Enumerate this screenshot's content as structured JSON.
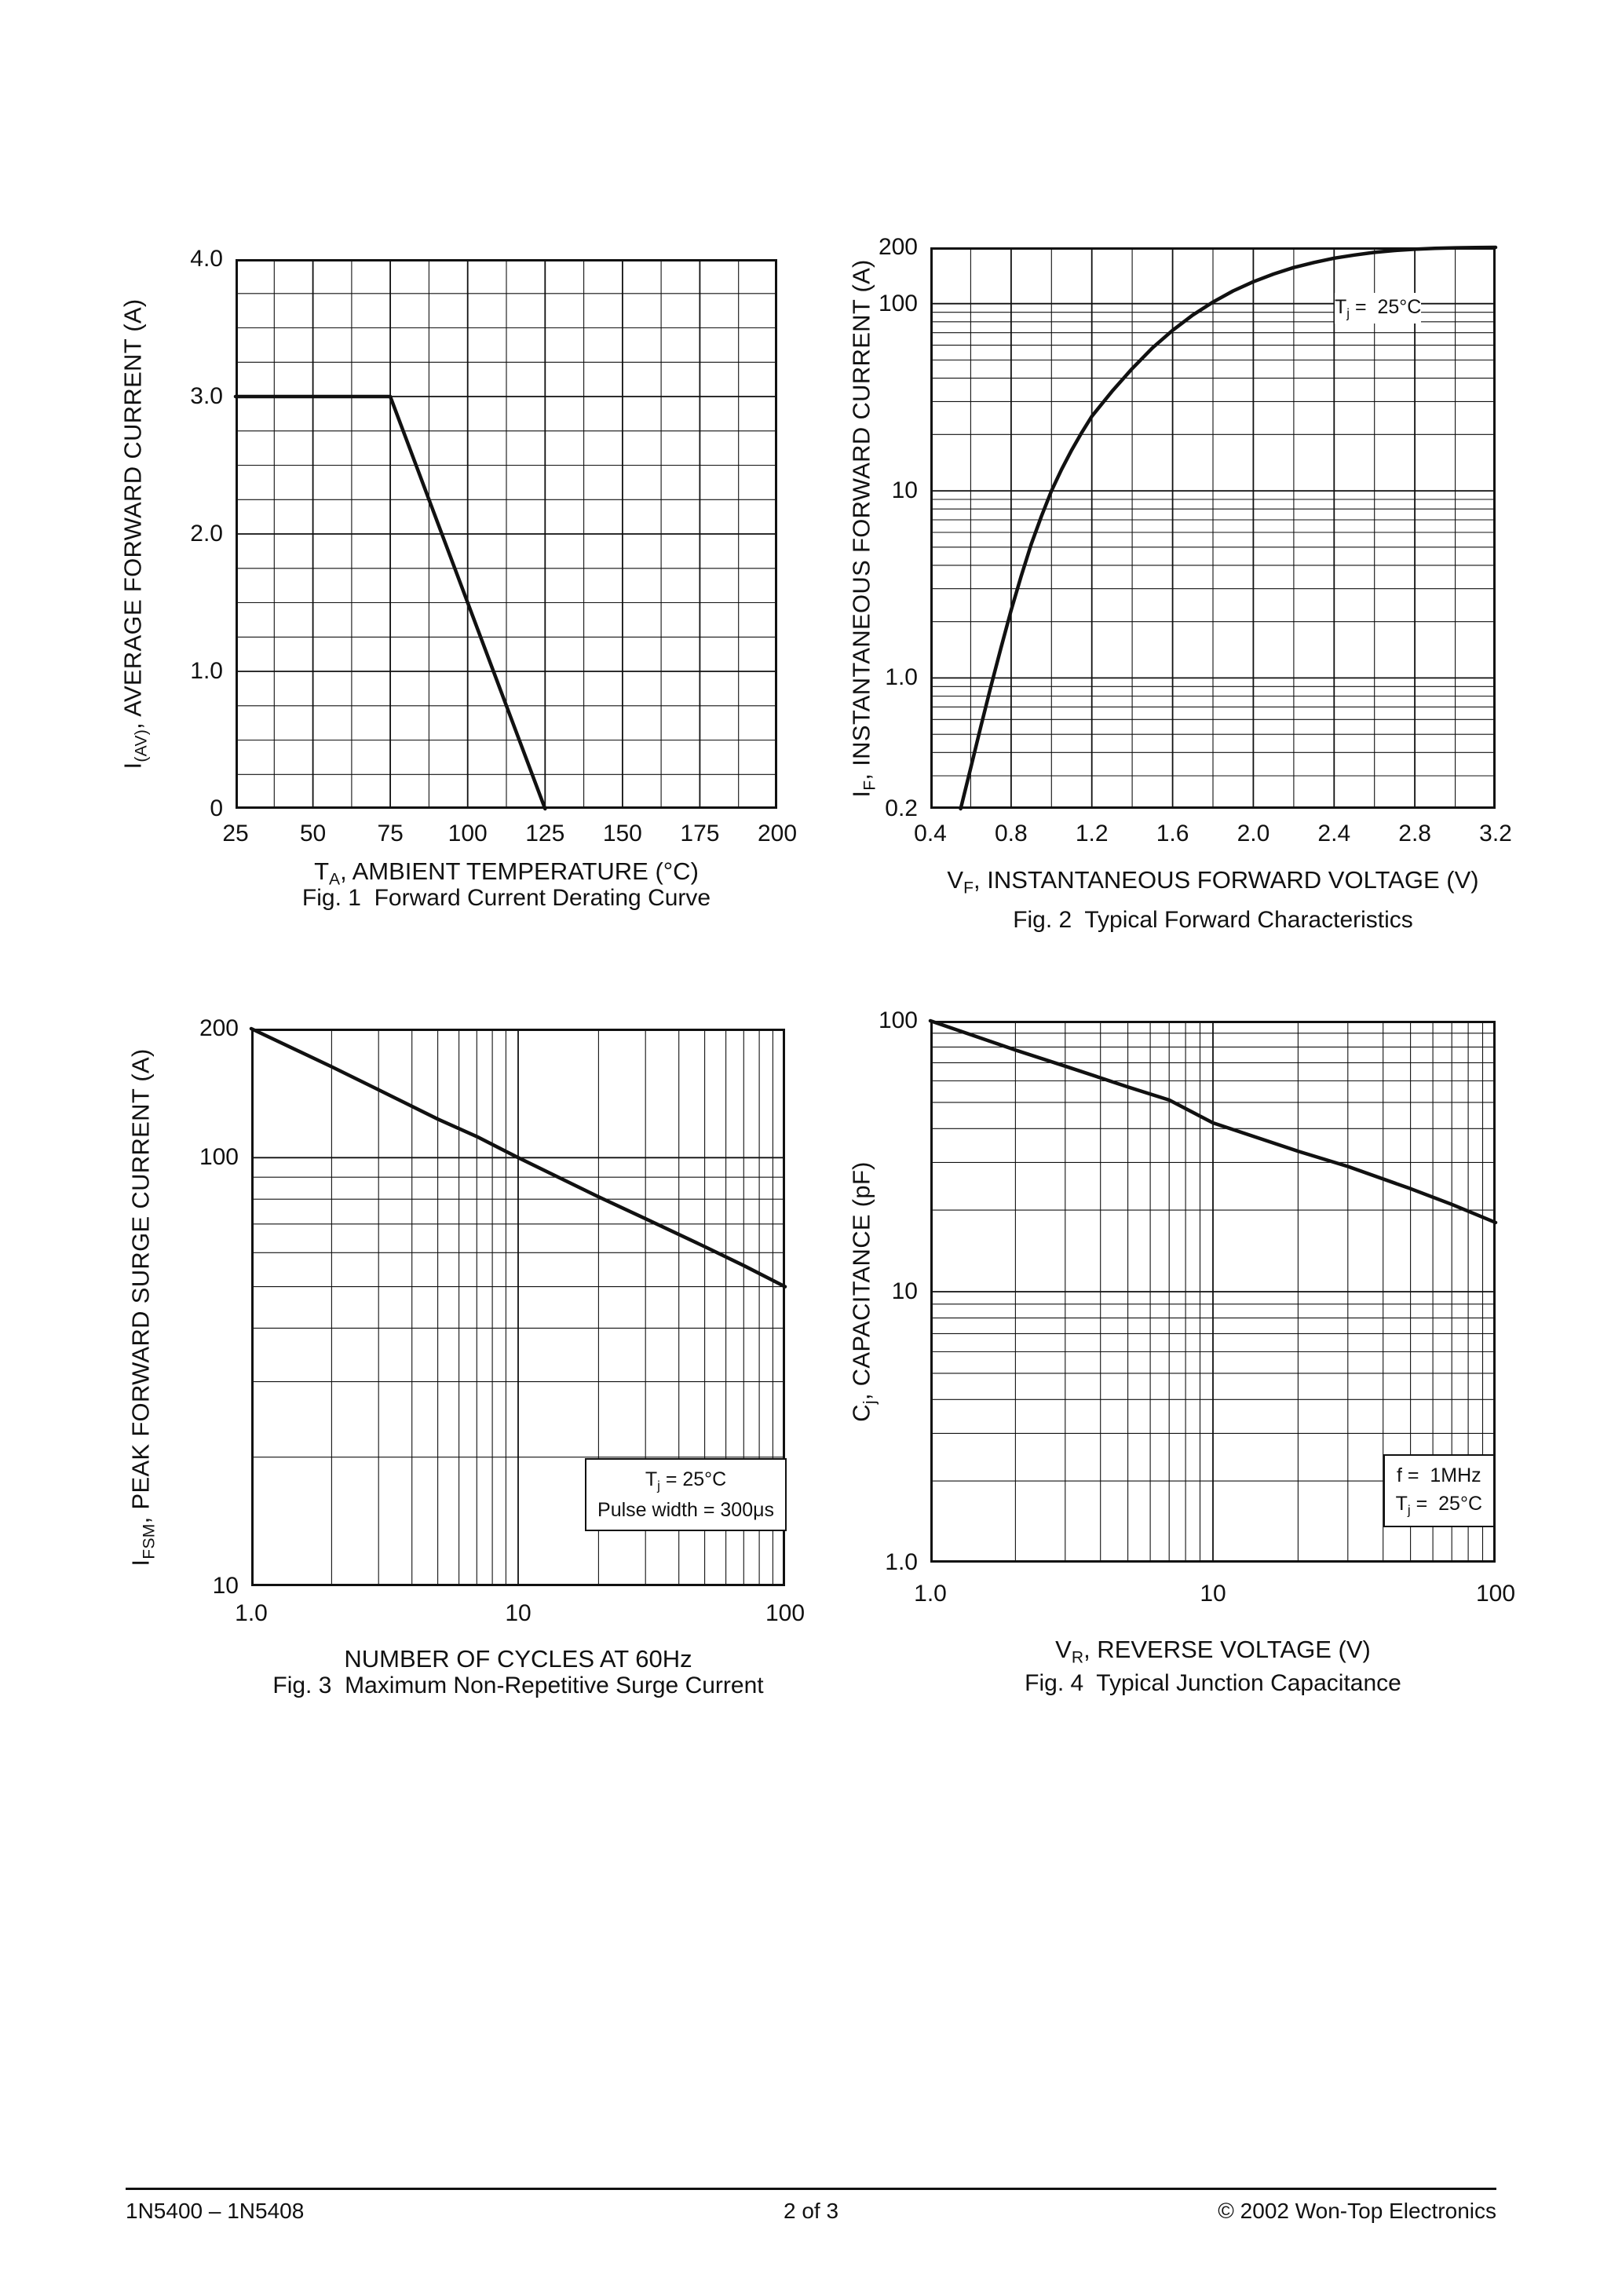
{
  "page": {
    "footer": {
      "left": "1N5400 – 1N5408",
      "center": "2 of 3",
      "right": "© 2002 Won-Top Electronics"
    },
    "ink_color": "#111111"
  },
  "chart_data": [
    {
      "id": "fig1",
      "type": "line",
      "title": "Fig. 1  Forward Current Derating Curve",
      "xlabel": "TA, AMBIENT TEMPERATURE (°C)",
      "ylabel": "I(AV), AVERAGE FORWARD CURRENT (A)",
      "xlabel_segments": [
        [
          "T"
        ],
        [
          "A",
          "sub"
        ],
        [
          ", AMBIENT TEMPERATURE (°C)"
        ]
      ],
      "ylabel_segments": [
        [
          "I"
        ],
        [
          "(AV)",
          "sub"
        ],
        [
          ", AVERAGE FORWARD CURRENT (A)"
        ]
      ],
      "xscale": "linear",
      "yscale": "linear",
      "xlim": [
        25,
        200
      ],
      "ylim": [
        0,
        4.0
      ],
      "grid": {
        "xminor": 12.5,
        "xmajor": 25,
        "yminor": 0.25,
        "ymajor": 1.0
      },
      "xticks": [
        {
          "v": 25,
          "label": "25"
        },
        {
          "v": 50,
          "label": "50"
        },
        {
          "v": 75,
          "label": "75"
        },
        {
          "v": 100,
          "label": "100"
        },
        {
          "v": 125,
          "label": "125"
        },
        {
          "v": 150,
          "label": "150"
        },
        {
          "v": 175,
          "label": "175"
        },
        {
          "v": 200,
          "label": "200"
        }
      ],
      "yticks": [
        {
          "v": 4.0,
          "label": "4.0"
        },
        {
          "v": 3.0,
          "label": "3.0"
        },
        {
          "v": 2.0,
          "label": "2.0"
        },
        {
          "v": 1.0,
          "label": "1.0"
        },
        {
          "v": 0,
          "label": "0"
        }
      ],
      "series": [
        {
          "name": "forward-current-derating",
          "points": [
            [
              25,
              3.0
            ],
            [
              75,
              3.0
            ],
            [
              125,
              0
            ]
          ]
        }
      ],
      "annotations": []
    },
    {
      "id": "fig2",
      "type": "line",
      "title": "Fig. 2  Typical Forward Characteristics",
      "xlabel": "VF, INSTANTANEOUS FORWARD VOLTAGE (V)",
      "ylabel": "IF, INSTANTANEOUS FORWARD CURRENT (A)",
      "xlabel_segments": [
        [
          "V"
        ],
        [
          "F",
          "sub"
        ],
        [
          ", INSTANTANEOUS FORWARD VOLTAGE (V)"
        ]
      ],
      "ylabel_segments": [
        [
          "I"
        ],
        [
          "F",
          "sub"
        ],
        [
          ", INSTANTANEOUS FORWARD CURRENT (A)"
        ]
      ],
      "xscale": "linear",
      "yscale": "log",
      "xlim": [
        0.4,
        3.2
      ],
      "ylim": [
        0.2,
        200
      ],
      "grid": {
        "xminor": 0.2,
        "xmajor": 0.4
      },
      "xticks": [
        {
          "v": 0.4,
          "label": "0.4"
        },
        {
          "v": 0.8,
          "label": "0.8"
        },
        {
          "v": 1.2,
          "label": "1.2"
        },
        {
          "v": 1.6,
          "label": "1.6"
        },
        {
          "v": 2.0,
          "label": "2.0"
        },
        {
          "v": 2.4,
          "label": "2.4"
        },
        {
          "v": 2.8,
          "label": "2.8"
        },
        {
          "v": 3.2,
          "label": "3.2"
        }
      ],
      "yticks": [
        {
          "v": 200,
          "label": "200"
        },
        {
          "v": 100,
          "label": "100"
        },
        {
          "v": 10,
          "label": "10"
        },
        {
          "v": 1,
          "label": "1.0"
        },
        {
          "v": 0.2,
          "label": "0.2"
        }
      ],
      "series": [
        {
          "name": "typical-forward-characteristic",
          "points": [
            [
              0.55,
              0.2
            ],
            [
              0.6,
              0.33
            ],
            [
              0.65,
              0.55
            ],
            [
              0.7,
              0.9
            ],
            [
              0.75,
              1.45
            ],
            [
              0.8,
              2.3
            ],
            [
              0.85,
              3.5
            ],
            [
              0.9,
              5.2
            ],
            [
              0.95,
              7.3
            ],
            [
              1.0,
              10
            ],
            [
              1.05,
              13
            ],
            [
              1.1,
              16.5
            ],
            [
              1.15,
              20.5
            ],
            [
              1.2,
              25
            ],
            [
              1.3,
              34
            ],
            [
              1.4,
              45
            ],
            [
              1.5,
              58
            ],
            [
              1.6,
              72
            ],
            [
              1.7,
              87
            ],
            [
              1.8,
              102
            ],
            [
              1.9,
              117
            ],
            [
              2.0,
              131
            ],
            [
              2.1,
              144
            ],
            [
              2.2,
              156
            ],
            [
              2.3,
              166
            ],
            [
              2.4,
              175
            ],
            [
              2.5,
              182
            ],
            [
              2.6,
              188
            ],
            [
              2.7,
              192.5
            ],
            [
              2.8,
              195.5
            ],
            [
              2.9,
              197.5
            ],
            [
              3.0,
              198.8
            ],
            [
              3.1,
              199.5
            ],
            [
              3.2,
              200
            ]
          ]
        }
      ],
      "annotations": [
        {
          "name": "tj-note",
          "box": false,
          "pos": {
            "left": 515,
            "top": 58
          },
          "lines": [
            [
              [
                "T"
              ],
              [
                "j",
                "sub"
              ],
              [
                " =  25°C"
              ]
            ]
          ]
        }
      ]
    },
    {
      "id": "fig3",
      "type": "line",
      "title": "Fig. 3  Maximum Non-Repetitive Surge Current",
      "xlabel": "NUMBER OF CYCLES AT 60Hz",
      "ylabel": "IFSM, PEAK FORWARD SURGE CURRENT (A)",
      "xlabel_segments": [
        [
          "NUMBER OF CYCLES AT 60Hz"
        ]
      ],
      "ylabel_segments": [
        [
          "I"
        ],
        [
          "FSM",
          "sub"
        ],
        [
          ", PEAK FORWARD SURGE CURRENT (A)"
        ]
      ],
      "xscale": "log",
      "yscale": "log",
      "xlim": [
        1,
        100
      ],
      "ylim": [
        10,
        200
      ],
      "grid": {},
      "xticks": [
        {
          "v": 1,
          "label": "1.0"
        },
        {
          "v": 10,
          "label": "10"
        },
        {
          "v": 100,
          "label": "100"
        }
      ],
      "yticks": [
        {
          "v": 200,
          "label": "200"
        },
        {
          "v": 100,
          "label": "100"
        },
        {
          "v": 10,
          "label": "10"
        }
      ],
      "series": [
        {
          "name": "peak-forward-surge-current",
          "points": [
            [
              1,
              200
            ],
            [
              2,
              163
            ],
            [
              3,
              144
            ],
            [
              5,
              123
            ],
            [
              7,
              112
            ],
            [
              10,
              100
            ],
            [
              20,
              81
            ],
            [
              30,
              72
            ],
            [
              50,
              62
            ],
            [
              70,
              56
            ],
            [
              100,
              50
            ]
          ]
        }
      ],
      "annotations": [
        {
          "name": "conditions-note",
          "box": true,
          "pos": {
            "right": -2,
            "bottom": 70
          },
          "lines": [
            [
              [
                "T"
              ],
              [
                "j",
                "sub"
              ],
              [
                " = 25°C"
              ]
            ],
            [
              [
                "Pulse width = 300μs"
              ]
            ]
          ]
        }
      ]
    },
    {
      "id": "fig4",
      "type": "line",
      "title": "Fig. 4  Typical Junction Capacitance",
      "xlabel": "VR, REVERSE VOLTAGE (V)",
      "ylabel": "Cj, CAPACITANCE (pF)",
      "xlabel_segments": [
        [
          "V"
        ],
        [
          "R",
          "sub"
        ],
        [
          ", REVERSE VOLTAGE (V)"
        ]
      ],
      "ylabel_segments": [
        [
          "C"
        ],
        [
          "j",
          "sub"
        ],
        [
          ", CAPACITANCE (pF)"
        ]
      ],
      "xscale": "log",
      "yscale": "log",
      "xlim": [
        1,
        100
      ],
      "ylim": [
        1,
        100
      ],
      "grid": {},
      "xticks": [
        {
          "v": 1,
          "label": "1.0"
        },
        {
          "v": 10,
          "label": "10"
        },
        {
          "v": 100,
          "label": "100"
        }
      ],
      "yticks": [
        {
          "v": 100,
          "label": "100"
        },
        {
          "v": 10,
          "label": "10"
        },
        {
          "v": 1,
          "label": "1.0"
        }
      ],
      "series": [
        {
          "name": "typical-junction-capacitance",
          "points": [
            [
              1,
              100
            ],
            [
              2,
              78
            ],
            [
              3,
              68
            ],
            [
              5,
              57
            ],
            [
              7,
              51
            ],
            [
              10,
              42
            ],
            [
              20,
              33
            ],
            [
              30,
              29
            ],
            [
              50,
              24
            ],
            [
              70,
              21
            ],
            [
              100,
              18
            ]
          ]
        }
      ],
      "annotations": [
        {
          "name": "conditions-note",
          "box": true,
          "pos": {
            "right": 1,
            "bottom": 45
          },
          "lines": [
            [
              [
                "f =  1MHz"
              ]
            ],
            [
              [
                "T"
              ],
              [
                "j",
                "sub"
              ],
              [
                " =  25°C"
              ]
            ]
          ]
        }
      ]
    }
  ]
}
